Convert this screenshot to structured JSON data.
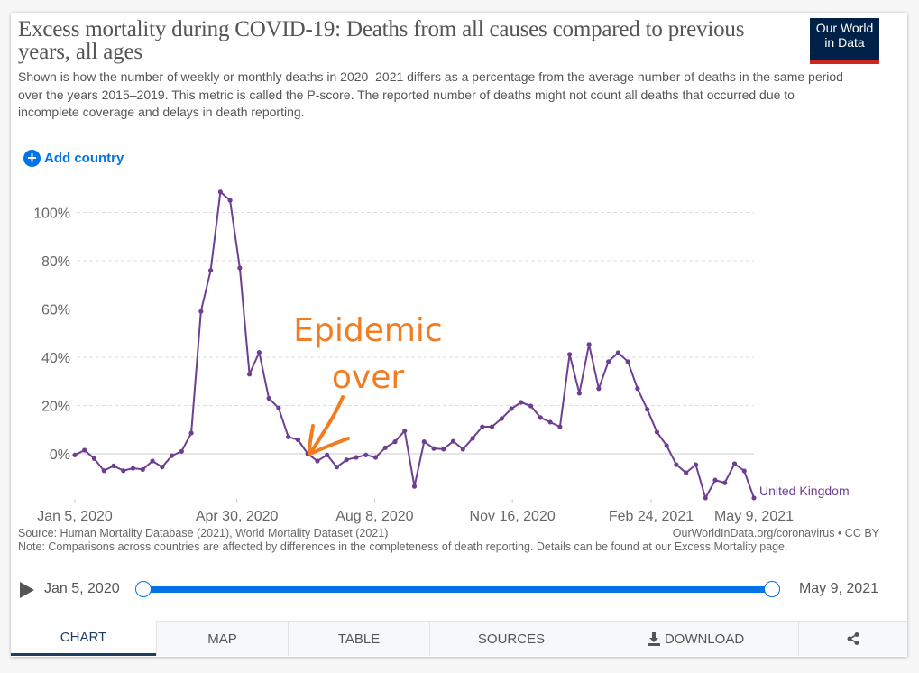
{
  "header": {
    "title": "Excess mortality during COVID-19: Deaths from all causes compared to previous years, all ages",
    "subtitle": "Shown is how the number of weekly or monthly deaths in 2020–2021 differs as a percentage from the average number of deaths in the same period over the years 2015–2019. This metric is called the P-score. The reported number of deaths might not count all deaths that occurred due to incomplete coverage and delays in death reporting.",
    "logo_line1": "Our World",
    "logo_line2": "in Data",
    "add_country_label": "Add country",
    "add_icon": "plus-circle-icon"
  },
  "colors": {
    "series": "#6d3e91",
    "accent": "#0073e6",
    "annotation": "#f47c20",
    "logo_bg": "#002147",
    "logo_bar": "#ce261e"
  },
  "annotation": {
    "line1": "Epidemic",
    "line2": "over",
    "points_to": "Jul 5, 2020 (~0%)"
  },
  "chart_data": {
    "type": "line",
    "title": "Excess mortality during COVID-19: Deaths from all causes compared to previous years, all ages",
    "xlabel": "",
    "ylabel": "",
    "ylim": [
      -20,
      110
    ],
    "yticks": [
      0,
      20,
      40,
      60,
      80,
      100
    ],
    "ytick_labels": [
      "0%",
      "20%",
      "40%",
      "60%",
      "80%",
      "100%"
    ],
    "xtick_labels": [
      "Jan 5, 2020",
      "Apr 30, 2020",
      "Aug 8, 2020",
      "Nov 16, 2020",
      "Feb 24, 2021",
      "May 9, 2021"
    ],
    "xtick_weeks": [
      0,
      16.7,
      30.9,
      45.1,
      59.4,
      70
    ],
    "grid": true,
    "x_start": "Jan 5, 2020",
    "x_end": "May 9, 2021",
    "interval": "weekly",
    "series": [
      {
        "name": "United Kingdom",
        "values": [
          -0.5,
          1.5,
          -2,
          -7,
          -5,
          -7,
          -6,
          -6.5,
          -3,
          -5.5,
          -0.8,
          1,
          8.6,
          59,
          76,
          108.5,
          105,
          77,
          33,
          42,
          23,
          19,
          7,
          5.8,
          0,
          -3,
          -0.5,
          -5.5,
          -2.5,
          -1.5,
          -0.5,
          -1.5,
          2.5,
          5,
          9.5,
          -13.5,
          5,
          2.2,
          1.9,
          5.2,
          1.9,
          6.4,
          11.2,
          11.2,
          14.6,
          18.7,
          21.3,
          19.8,
          15,
          13.1,
          11.2,
          41.2,
          25.1,
          45.3,
          27,
          38.2,
          41.9,
          38.2,
          27,
          18.4,
          9,
          3.4,
          -4.5,
          -7.9,
          -4.5,
          -18.3,
          -10.9,
          -12,
          -4.1,
          -7.1,
          -18.3
        ]
      }
    ]
  },
  "footer": {
    "source": "Source: Human Mortality Database (2021), World Mortality Dataset (2021)",
    "link": "OurWorldInData.org/coronavirus • CC BY",
    "note": "Note: Comparisons across countries are affected by differences in the completeness of death reporting. Details can be found at our Excess Mortality page."
  },
  "timeline": {
    "start_label": "Jan 5, 2020",
    "end_label": "May 9, 2021",
    "start_fraction": 0,
    "end_fraction": 1
  },
  "tabs": [
    {
      "label": "CHART",
      "active": true
    },
    {
      "label": "MAP"
    },
    {
      "label": "TABLE"
    },
    {
      "label": "SOURCES"
    },
    {
      "label": "DOWNLOAD",
      "icon": "download-icon"
    },
    {
      "label": "",
      "icon": "share-icon"
    }
  ]
}
